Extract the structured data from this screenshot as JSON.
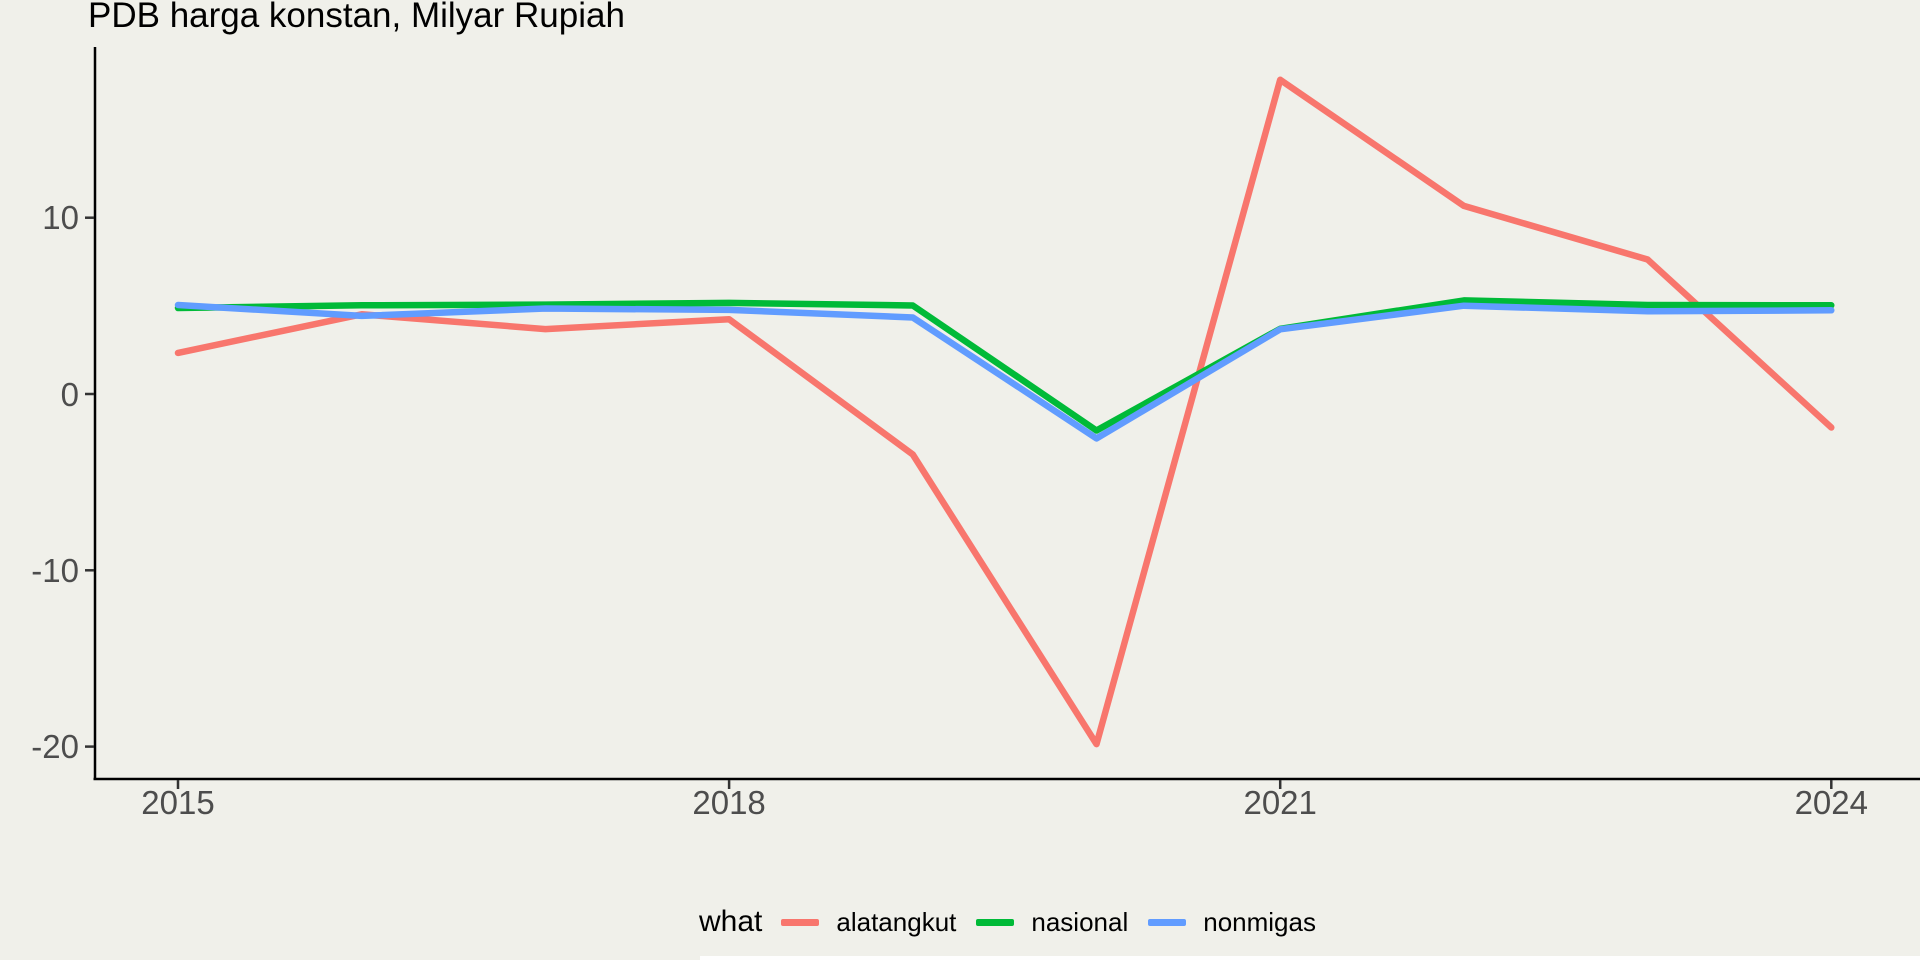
{
  "title": "PDB harga konstan, Milyar Rupiah",
  "colors": {
    "background": "#F0F0EA",
    "axis_line": "#000000",
    "tick_mark": "#333333",
    "tick_label": "#4D4D4D",
    "title_text": "#000000",
    "bottom_strip": "#FEFEFE"
  },
  "chart_data": {
    "type": "line",
    "title": "PDB harga konstan, Milyar Rupiah",
    "xlabel": "",
    "ylabel": "",
    "grid": false,
    "legend_position": "bottom",
    "legend_title": "what",
    "x": [
      2015,
      2016,
      2017,
      2018,
      2019,
      2020,
      2021,
      2022,
      2023,
      2024
    ],
    "x_tick_labels": [
      "2015",
      "2018",
      "2021",
      "2024"
    ],
    "x_tick_years": [
      2015,
      2018,
      2021,
      2024
    ],
    "y_tick_labels": [
      "10",
      "0",
      "-10",
      "-20"
    ],
    "y_tick_values": [
      10,
      0,
      -10,
      -20
    ],
    "xlim": [
      2014.55,
      2024.5
    ],
    "ylim": [
      -21.8,
      19.7
    ],
    "series": [
      {
        "name": "alatangkut",
        "color": "#F8766D",
        "values": [
          2.33,
          4.52,
          3.68,
          4.24,
          -3.43,
          -19.86,
          17.82,
          10.67,
          7.63,
          -1.9
        ]
      },
      {
        "name": "nasional",
        "color": "#00BA38",
        "values": [
          4.88,
          5.03,
          5.07,
          5.17,
          5.02,
          -2.07,
          3.7,
          5.31,
          5.05,
          5.03
        ]
      },
      {
        "name": "nonmigas",
        "color": "#619CFF",
        "values": [
          5.05,
          4.43,
          4.85,
          4.77,
          4.34,
          -2.52,
          3.67,
          5.01,
          4.69,
          4.75
        ]
      }
    ]
  }
}
